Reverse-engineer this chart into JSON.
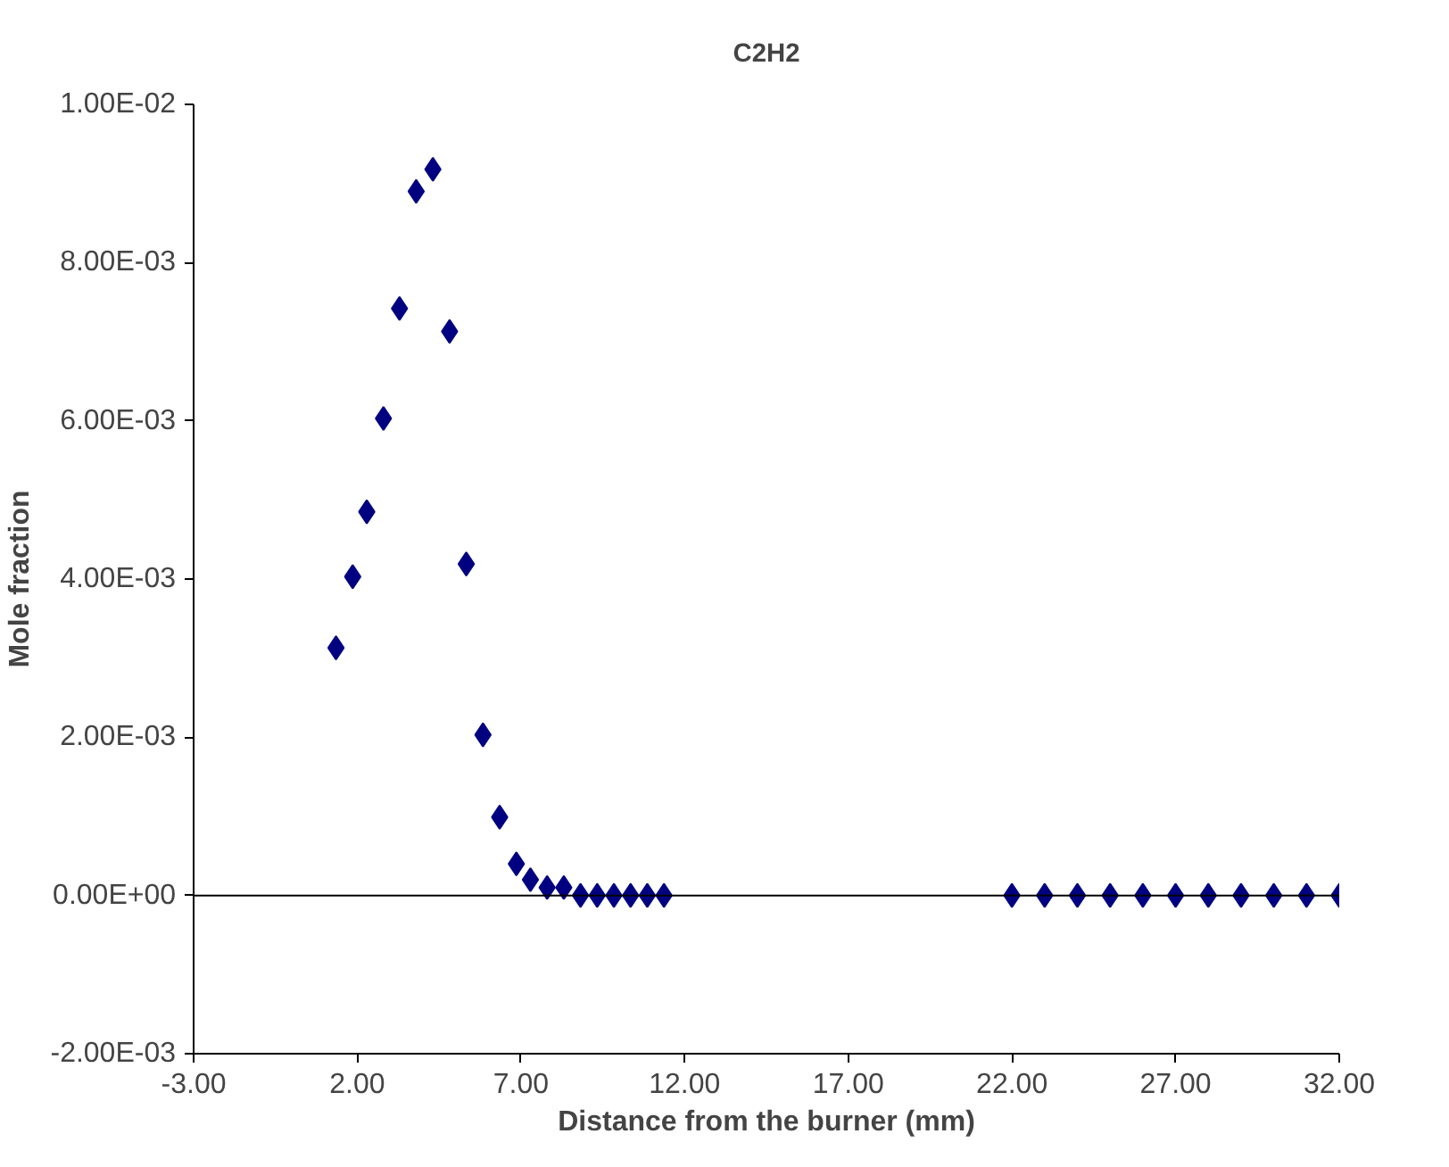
{
  "chart_data": {
    "type": "scatter",
    "title": "C2H2",
    "xlabel": "Distance from the burner (mm)",
    "ylabel": "Mole fraction",
    "x": [
      1.35,
      1.86,
      2.29,
      2.8,
      3.29,
      3.8,
      4.31,
      4.82,
      5.33,
      5.84,
      6.35,
      6.86,
      7.29,
      7.8,
      8.31,
      8.82,
      9.33,
      9.84,
      10.35,
      10.86,
      11.37,
      22.0,
      23.0,
      24.0,
      25.0,
      26.0,
      27.0,
      28.0,
      29.0,
      30.0,
      31.0,
      32.0
    ],
    "series": [
      {
        "color": "#000080",
        "values": [
          0.00313,
          0.00403,
          0.00485,
          0.00603,
          0.00742,
          0.0089,
          0.00918,
          0.00713,
          0.00419,
          0.00203,
          0.00099,
          0.0004,
          0.0002,
          0.0001,
          0.0001,
          0,
          0,
          0,
          0,
          0,
          0,
          0,
          0,
          0,
          0,
          0,
          0,
          0,
          0,
          0,
          0,
          0
        ]
      }
    ],
    "xlim": [
      -3,
      32
    ],
    "xticks": [
      {
        "value": -3,
        "label": "-3.00"
      },
      {
        "value": 2,
        "label": "2.00"
      },
      {
        "value": 7,
        "label": "7.00"
      },
      {
        "value": 12,
        "label": "12.00"
      },
      {
        "value": 17,
        "label": "17.00"
      },
      {
        "value": 22,
        "label": "22.00"
      },
      {
        "value": 27,
        "label": "27.00"
      },
      {
        "value": 32,
        "label": "32.00"
      }
    ],
    "ylim": [
      -0.002,
      0.01
    ],
    "yticks": [
      {
        "value": -0.002,
        "label": "-2.00E-03"
      },
      {
        "value": 0,
        "label": "0.00E+00"
      },
      {
        "value": 0.002,
        "label": "2.00E-03"
      },
      {
        "value": 0.004,
        "label": "4.00E-03"
      },
      {
        "value": 0.006,
        "label": "6.00E-03"
      },
      {
        "value": 0.008,
        "label": "8.00E-03"
      },
      {
        "value": 0.01,
        "label": "1.00E-02"
      }
    ],
    "ref_lines": [
      {
        "axis": "y",
        "value": 0,
        "color": "#000000"
      }
    ],
    "grid": false,
    "marker": "diamond"
  }
}
